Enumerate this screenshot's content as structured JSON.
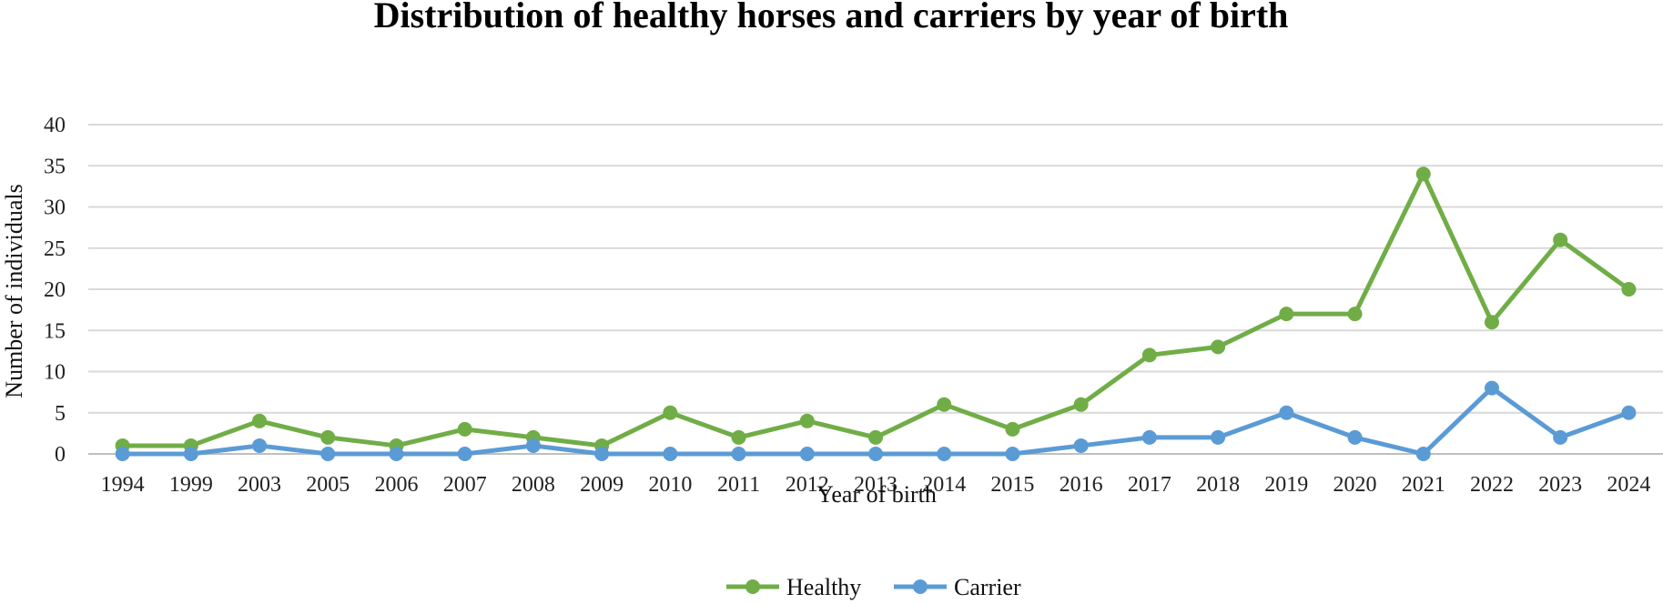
{
  "chart_data": {
    "type": "line",
    "title": "Distribution of healthy horses and carriers by year of birth",
    "xlabel": "Year of birth",
    "ylabel": "Number of individuals",
    "ylim": [
      0,
      40
    ],
    "yticks": [
      "0",
      "5",
      "10",
      "15",
      "20",
      "25",
      "30",
      "35",
      "40"
    ],
    "grid": true,
    "legend_position": "bottom",
    "categories": [
      "1994",
      "1999",
      "2003",
      "2005",
      "2006",
      "2007",
      "2008",
      "2009",
      "2010",
      "2011",
      "2012",
      "2013",
      "2014",
      "2015",
      "2016",
      "2017",
      "2018",
      "2019",
      "2020",
      "2021",
      "2022",
      "2023",
      "2024"
    ],
    "series": [
      {
        "name": "Healthy",
        "color": "#70ad47",
        "values": [
          1,
          1,
          4,
          2,
          1,
          3,
          2,
          1,
          5,
          2,
          4,
          2,
          6,
          3,
          6,
          12,
          13,
          17,
          17,
          34,
          16,
          26,
          20
        ]
      },
      {
        "name": "Carrier",
        "color": "#5b9bd5",
        "values": [
          0,
          0,
          1,
          0,
          0,
          0,
          1,
          0,
          0,
          0,
          0,
          0,
          0,
          0,
          1,
          2,
          2,
          5,
          2,
          0,
          8,
          2,
          5
        ]
      }
    ]
  }
}
